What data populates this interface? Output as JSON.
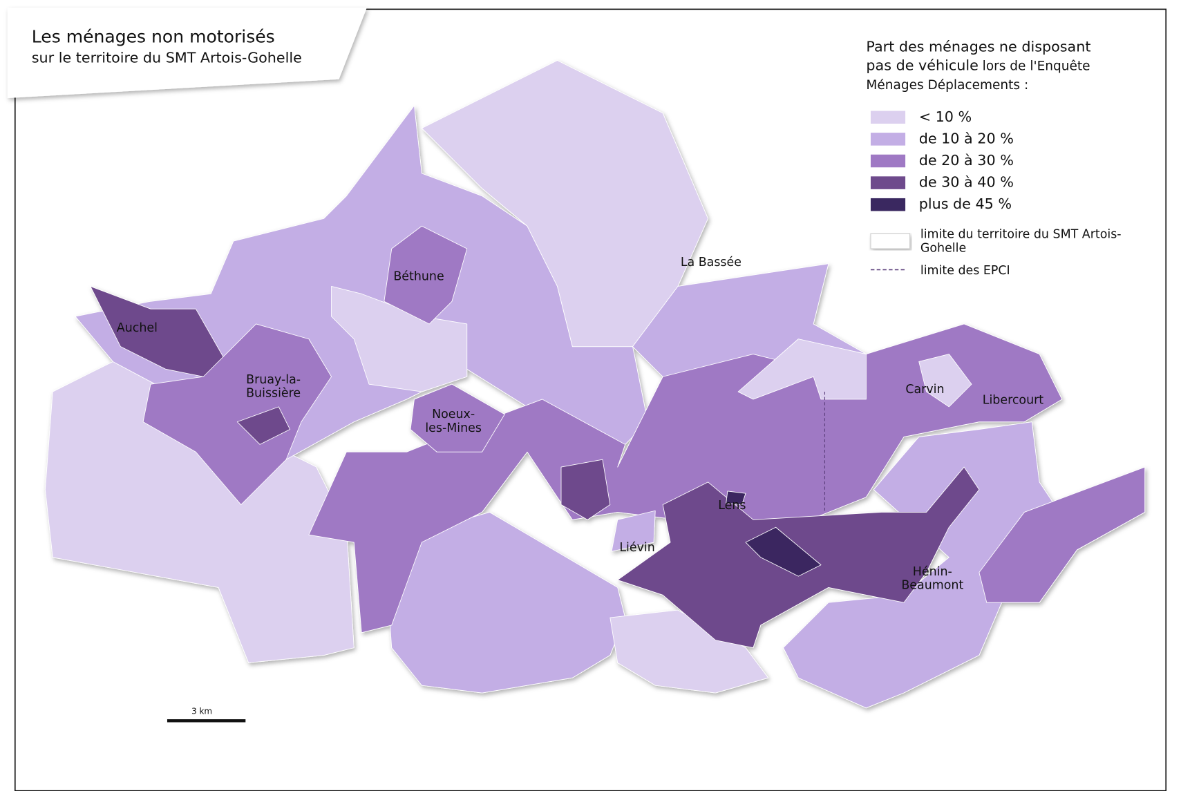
{
  "header": {
    "title": "Les ménages non motorisés",
    "subtitle": "sur le territoire du SMT Artois-Gohelle"
  },
  "legend": {
    "title_lines": [
      [
        "Part des ménages ne disposant"
      ],
      [
        "pas de véhicule",
        " lors de l'Enquête"
      ],
      [
        "Ménages Déplacements :"
      ]
    ],
    "classes": [
      {
        "label": "< 10 %",
        "color": "#dcd0ef"
      },
      {
        "label": "de 10 à 20 %",
        "color": "#c3aee5"
      },
      {
        "label": "de 20 à 30 %",
        "color": "#9f79c4"
      },
      {
        "label": "de 30 à 40 %",
        "color": "#6e4a8c"
      },
      {
        "label": "plus de 45 %",
        "color": "#3a2860"
      }
    ],
    "boundaries": [
      {
        "label_lines": [
          "limite du territoire du SMT Artois-",
          "Gohelle"
        ]
      },
      {
        "label_lines": [
          "limite des EPCI"
        ]
      }
    ]
  },
  "cities": [
    {
      "lines": [
        "Auchel"
      ]
    },
    {
      "lines": [
        "Béthune"
      ]
    },
    {
      "lines": [
        "Bruay-la-",
        "Buissière"
      ]
    },
    {
      "lines": [
        "Noeux-",
        "les-Mines"
      ]
    },
    {
      "lines": [
        "La Bassée"
      ]
    },
    {
      "lines": [
        "Carvin"
      ]
    },
    {
      "lines": [
        "Libercourt"
      ]
    },
    {
      "lines": [
        "Lens"
      ]
    },
    {
      "lines": [
        "Liévin"
      ]
    },
    {
      "lines": [
        "Hénin-",
        "Beaumont"
      ]
    }
  ],
  "scale": {
    "label": "3 km"
  }
}
